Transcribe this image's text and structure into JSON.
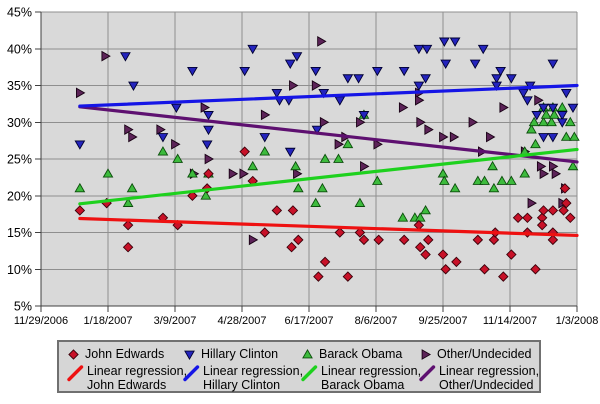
{
  "chart_data": {
    "type": "scatter",
    "title": "",
    "x_axis": {
      "tick_labels": [
        "11/29/2006",
        "1/18/2007",
        "3/9/2007",
        "4/28/2007",
        "6/17/2007",
        "8/6/2007",
        "9/25/2007",
        "11/14/2007",
        "1/3/2008"
      ],
      "range_days": [
        0,
        400
      ],
      "tick_step_days": 50
    },
    "y_axis": {
      "tick_labels": [
        "5%",
        "10%",
        "15%",
        "20%",
        "25%",
        "30%",
        "35%",
        "40%",
        "45%"
      ],
      "min": 5,
      "max": 45,
      "step": 5,
      "unit": "%"
    },
    "grid": true,
    "plot_background": "#d9d9d9",
    "grid_color": "#8f8f8f",
    "axis_color": "#404040",
    "legend_position": "bottom",
    "series": [
      {
        "name": "John Edwards",
        "marker": "diamond",
        "fill": "#c81128",
        "stroke": "#3a000a",
        "points": [
          [
            29,
            18
          ],
          [
            49,
            19
          ],
          [
            65,
            16
          ],
          [
            65,
            13
          ],
          [
            91,
            17
          ],
          [
            102,
            16
          ],
          [
            113,
            20
          ],
          [
            124,
            21
          ],
          [
            125,
            23
          ],
          [
            152,
            26
          ],
          [
            158,
            22
          ],
          [
            167,
            15
          ],
          [
            176,
            18
          ],
          [
            187,
            13
          ],
          [
            188,
            18
          ],
          [
            192,
            14
          ],
          [
            207,
            9
          ],
          [
            212,
            11
          ],
          [
            223,
            15
          ],
          [
            229,
            9
          ],
          [
            238,
            15
          ],
          [
            241,
            14
          ],
          [
            252,
            14
          ],
          [
            271,
            14
          ],
          [
            282,
            16
          ],
          [
            283,
            13
          ],
          [
            287,
            12
          ],
          [
            289,
            14
          ],
          [
            300,
            12
          ],
          [
            302,
            10
          ],
          [
            310,
            11
          ],
          [
            326,
            14
          ],
          [
            331,
            10
          ],
          [
            338,
            14
          ],
          [
            339,
            15
          ],
          [
            345,
            9
          ],
          [
            351,
            12
          ],
          [
            356,
            17
          ],
          [
            363,
            17
          ],
          [
            363,
            15
          ],
          [
            369,
            10
          ],
          [
            374,
            17
          ],
          [
            374,
            16
          ],
          [
            375,
            18
          ],
          [
            382,
            18
          ],
          [
            382,
            15
          ],
          [
            382,
            14
          ],
          [
            390,
            18
          ],
          [
            391,
            21
          ],
          [
            392,
            19
          ],
          [
            395,
            17
          ]
        ]
      },
      {
        "name": "Hillary Clinton",
        "marker": "triangle-down",
        "fill": "#2424bd",
        "stroke": "#000030",
        "points": [
          [
            29,
            27
          ],
          [
            63,
            39
          ],
          [
            69,
            35
          ],
          [
            91,
            28
          ],
          [
            101,
            32
          ],
          [
            113,
            37
          ],
          [
            124,
            27
          ],
          [
            125,
            29
          ],
          [
            125,
            31
          ],
          [
            152,
            37
          ],
          [
            158,
            40
          ],
          [
            167,
            28
          ],
          [
            176,
            34
          ],
          [
            178,
            33
          ],
          [
            185,
            33
          ],
          [
            186,
            26
          ],
          [
            186,
            38
          ],
          [
            191,
            39
          ],
          [
            205,
            37
          ],
          [
            206,
            29
          ],
          [
            211,
            34
          ],
          [
            223,
            33
          ],
          [
            229,
            36
          ],
          [
            237,
            36
          ],
          [
            241,
            31
          ],
          [
            251,
            37
          ],
          [
            271,
            37
          ],
          [
            282,
            35
          ],
          [
            282,
            40
          ],
          [
            287,
            36
          ],
          [
            288,
            40
          ],
          [
            301,
            41
          ],
          [
            302,
            38
          ],
          [
            309,
            41
          ],
          [
            324,
            38
          ],
          [
            330,
            40
          ],
          [
            340,
            36
          ],
          [
            340,
            35
          ],
          [
            343,
            37
          ],
          [
            351,
            36
          ],
          [
            360,
            34
          ],
          [
            363,
            33
          ],
          [
            365,
            35
          ],
          [
            370,
            31
          ],
          [
            375,
            32
          ],
          [
            375,
            28
          ],
          [
            382,
            38
          ],
          [
            382,
            32
          ],
          [
            382,
            28
          ],
          [
            389,
            31
          ],
          [
            389,
            30
          ],
          [
            392,
            34
          ],
          [
            397,
            32
          ]
        ]
      },
      {
        "name": "Barack Obama",
        "marker": "triangle-up",
        "fill": "#3dbb3d",
        "stroke": "#0b4d0b",
        "points": [
          [
            29,
            21
          ],
          [
            50,
            23
          ],
          [
            65,
            19
          ],
          [
            68,
            21
          ],
          [
            91,
            26
          ],
          [
            102,
            25
          ],
          [
            113,
            23
          ],
          [
            123,
            20
          ],
          [
            125,
            23
          ],
          [
            158,
            24
          ],
          [
            167,
            26
          ],
          [
            190,
            24
          ],
          [
            192,
            21
          ],
          [
            205,
            19
          ],
          [
            210,
            21
          ],
          [
            212,
            25
          ],
          [
            222,
            25
          ],
          [
            229,
            27
          ],
          [
            238,
            19
          ],
          [
            241,
            31
          ],
          [
            251,
            22
          ],
          [
            270,
            17
          ],
          [
            279,
            17
          ],
          [
            283,
            17
          ],
          [
            287,
            18
          ],
          [
            300,
            23
          ],
          [
            301,
            22
          ],
          [
            309,
            21
          ],
          [
            326,
            22
          ],
          [
            331,
            22
          ],
          [
            337,
            24
          ],
          [
            338,
            21
          ],
          [
            344,
            22
          ],
          [
            351,
            22
          ],
          [
            361,
            26
          ],
          [
            361,
            23
          ],
          [
            366,
            29
          ],
          [
            368,
            30
          ],
          [
            369,
            27
          ],
          [
            375,
            32
          ],
          [
            375,
            30
          ],
          [
            377,
            31
          ],
          [
            381,
            30
          ],
          [
            382,
            32
          ],
          [
            383,
            31
          ],
          [
            389,
            32
          ],
          [
            392,
            28
          ],
          [
            395,
            30
          ],
          [
            397,
            24
          ],
          [
            398,
            28
          ]
        ]
      },
      {
        "name": "Other/Undecided",
        "marker": "triangle-right",
        "fill": "#5c2358",
        "stroke": "#170013",
        "points": [
          [
            29,
            34
          ],
          [
            48,
            39
          ],
          [
            65,
            29
          ],
          [
            68,
            28
          ],
          [
            89,
            29
          ],
          [
            100,
            27
          ],
          [
            114,
            23
          ],
          [
            122,
            32
          ],
          [
            125,
            25
          ],
          [
            143,
            23
          ],
          [
            151,
            23
          ],
          [
            158,
            14
          ],
          [
            167,
            31
          ],
          [
            188,
            35
          ],
          [
            191,
            23
          ],
          [
            205,
            35
          ],
          [
            209,
            41
          ],
          [
            211,
            30
          ],
          [
            222,
            27
          ],
          [
            227,
            28
          ],
          [
            238,
            30
          ],
          [
            241,
            24
          ],
          [
            251,
            27
          ],
          [
            270,
            32
          ],
          [
            282,
            34
          ],
          [
            282,
            33
          ],
          [
            283,
            30
          ],
          [
            289,
            29
          ],
          [
            300,
            28
          ],
          [
            308,
            28
          ],
          [
            322,
            30
          ],
          [
            329,
            26
          ],
          [
            335,
            28
          ],
          [
            345,
            32
          ],
          [
            361,
            26
          ],
          [
            366,
            19
          ],
          [
            371,
            33
          ],
          [
            373,
            24
          ],
          [
            375,
            23
          ],
          [
            382,
            24
          ],
          [
            384,
            23
          ],
          [
            389,
            19
          ],
          [
            391,
            21
          ]
        ]
      }
    ],
    "regressions": [
      {
        "name": "Linear regression, John Edwards",
        "color": "#ee1111",
        "points": [
          [
            29,
            16.9
          ],
          [
            400,
            14.6
          ]
        ]
      },
      {
        "name": "Linear regression, Hillary Clinton",
        "color": "#1515e6",
        "points": [
          [
            29,
            32.2
          ],
          [
            400,
            35.0
          ]
        ]
      },
      {
        "name": "Linear regression, Barack Obama",
        "color": "#1ed11e",
        "points": [
          [
            29,
            18.9
          ],
          [
            400,
            26.3
          ]
        ]
      },
      {
        "name": "Linear regression, Other/Undecided",
        "color": "#5e1070",
        "points": [
          [
            29,
            32.1
          ],
          [
            400,
            24.6
          ]
        ]
      }
    ]
  },
  "legend": {
    "row1": [
      {
        "label": "John Edwards",
        "series": 0
      },
      {
        "label": "Hillary Clinton",
        "series": 1
      },
      {
        "label": "Barack Obama",
        "series": 2
      },
      {
        "label": "Other/Undecided",
        "series": 3
      }
    ],
    "row2": [
      {
        "label_line1": "Linear regression,",
        "label_line2": "John Edwards",
        "regression": 0
      },
      {
        "label_line1": "Linear regression,",
        "label_line2": "Hillary Clinton",
        "regression": 1
      },
      {
        "label_line1": "Linear regression,",
        "label_line2": "Barack Obama",
        "regression": 2
      },
      {
        "label_line1": "Linear regression,",
        "label_line2": "Other/Undecided",
        "regression": 3
      }
    ]
  }
}
